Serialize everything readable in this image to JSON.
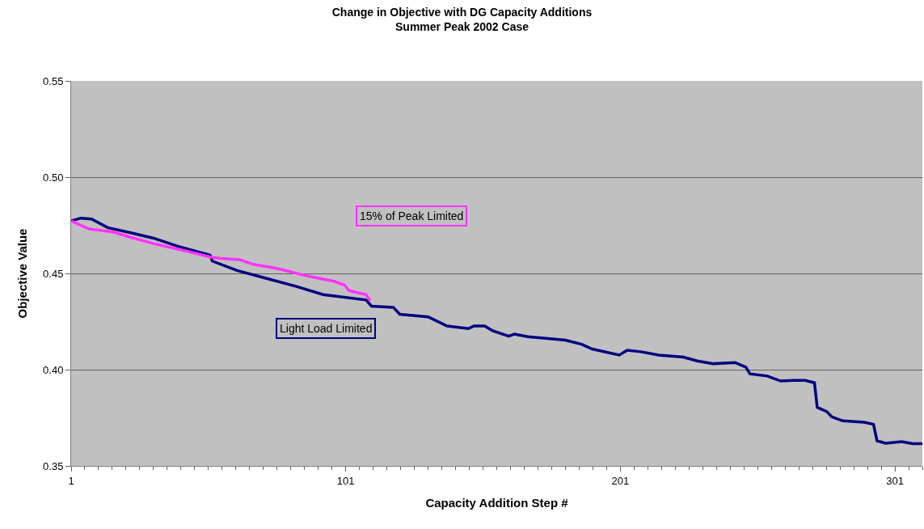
{
  "chart_data": {
    "type": "line",
    "title": "Change in Objective with DG Capacity Additions",
    "subtitle": "Summer Peak 2002 Case",
    "xlabel": "Capacity Addition Step #",
    "ylabel": "Objective Value",
    "xlim": [
      1,
      311
    ],
    "xticks": [
      1,
      101,
      201,
      301
    ],
    "ylim": [
      0.35,
      0.55
    ],
    "yticks": [
      {
        "value": 0.35,
        "label": "0.35"
      },
      {
        "value": 0.4,
        "label": "0.40"
      },
      {
        "value": 0.45,
        "label": "0.45"
      },
      {
        "value": 0.5,
        "label": "0.50"
      },
      {
        "value": 0.55,
        "label": "0.55"
      }
    ],
    "grid": "y",
    "legend": false,
    "marker": "none",
    "line_style": "solid",
    "series": [
      {
        "name": "Light Load Limited",
        "color": "#000080",
        "x": [
          1,
          4.5,
          8.4,
          14.3,
          23,
          31,
          39.8,
          51.6,
          52.4,
          61.4,
          72.2,
          83,
          92.8,
          108.4,
          110.4,
          118.3,
          120.7,
          131,
          137.9,
          145.7,
          147.7,
          151.6,
          154.5,
          160.4,
          162.4,
          167.3,
          181,
          186.9,
          190.8,
          200.6,
          203.5,
          208.5,
          215,
          224,
          229,
          234.9,
          242.8,
          246.7,
          248.2,
          254.5,
          259.4,
          264.3,
          268.3,
          271.7,
          272.7,
          276.1,
          278,
          282,
          289.8,
          293.2,
          294.5,
          297.6,
          303.5,
          307.5,
          311
        ],
        "values": [
          0.4773,
          0.4787,
          0.4783,
          0.4738,
          0.471,
          0.4683,
          0.4641,
          0.4595,
          0.4564,
          0.4515,
          0.4474,
          0.4432,
          0.439,
          0.4362,
          0.433,
          0.4324,
          0.4288,
          0.4274,
          0.4227,
          0.4213,
          0.4227,
          0.4227,
          0.4202,
          0.4174,
          0.4185,
          0.4171,
          0.4153,
          0.4132,
          0.4107,
          0.4076,
          0.4101,
          0.4093,
          0.4076,
          0.4065,
          0.4045,
          0.4031,
          0.4037,
          0.4013,
          0.3978,
          0.3967,
          0.3941,
          0.3944,
          0.3944,
          0.3932,
          0.3804,
          0.3783,
          0.3755,
          0.3734,
          0.3727,
          0.3716,
          0.363,
          0.3618,
          0.3626,
          0.3616,
          0.3616
        ]
      },
      {
        "name": "15% of Peak Limited",
        "color": "#ff33ff",
        "x": [
          1,
          7.5,
          16.3,
          22,
          31,
          41.8,
          51.6,
          55.5,
          62.4,
          67.3,
          76.1,
          86.9,
          96.7,
          100.6,
          102.1,
          108.4,
          109.9
        ],
        "values": [
          0.4773,
          0.4731,
          0.4715,
          0.469,
          0.4655,
          0.462,
          0.4585,
          0.4578,
          0.4571,
          0.4547,
          0.4525,
          0.4487,
          0.4459,
          0.4439,
          0.4411,
          0.439,
          0.4358
        ]
      }
    ]
  }
}
